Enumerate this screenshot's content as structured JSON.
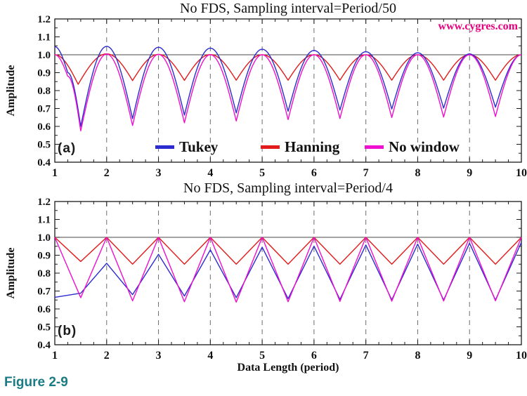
{
  "page": {
    "watermark": "www.cygres.com",
    "watermark_color": "#e6007e",
    "figure_caption": "Figure 2-9",
    "caption_color": "#1b7b85",
    "xlabel": "Data Length (period)"
  },
  "style_colors": {
    "gridline": "#6e6e6e",
    "reference_line": "#4a4a4a",
    "axis": "#1a1a1a"
  },
  "chart_data": [
    {
      "id": "a",
      "type": "line",
      "panel_label": "(a)",
      "title": "No FDS, Sampling interval=Period/50",
      "ylabel": "Amplitude",
      "xlim": [
        1,
        10
      ],
      "ylim": [
        0.4,
        1.2
      ],
      "x_major_ticks": [
        1,
        2,
        3,
        4,
        5,
        6,
        7,
        8,
        9,
        10
      ],
      "x_minor_step": 0.25,
      "y_major_ticks": [
        0.4,
        0.5,
        0.6,
        0.7,
        0.8,
        0.9,
        1.0,
        1.1,
        1.2
      ],
      "y_minor_step": 0.05,
      "grid_x_dashed": [
        2,
        3,
        4,
        5,
        6,
        7,
        8,
        9
      ],
      "reference_line_y": 1.0,
      "interp": "scallop",
      "legend_visible": true,
      "series": [
        {
          "name": "Tukey",
          "color": "#2b2bd0",
          "points": [
            [
              1,
              1.045
            ],
            [
              1.25,
              0.9
            ],
            [
              1.5,
              0.6
            ],
            [
              2,
              1.047
            ],
            [
              2.5,
              0.643
            ],
            [
              3,
              1.042
            ],
            [
              3.5,
              0.663
            ],
            [
              4,
              1.037
            ],
            [
              4.5,
              0.675
            ],
            [
              5,
              1.031
            ],
            [
              5.5,
              0.684
            ],
            [
              6,
              1.024
            ],
            [
              6.5,
              0.691
            ],
            [
              7,
              1.017
            ],
            [
              7.5,
              0.697
            ],
            [
              8,
              1.011
            ],
            [
              8.5,
              0.702
            ],
            [
              9,
              1.005
            ],
            [
              9.5,
              0.707
            ],
            [
              10,
              1.0
            ]
          ]
        },
        {
          "name": "Hanning",
          "color": "#e21b1b",
          "points": [
            [
              1,
              1.0
            ],
            [
              1.45,
              0.835
            ],
            [
              2,
              1.005
            ],
            [
              2.5,
              0.856
            ],
            [
              3,
              1.002
            ],
            [
              3.5,
              0.857
            ],
            [
              4,
              1.001
            ],
            [
              4.5,
              0.858
            ],
            [
              5,
              1.0
            ],
            [
              5.5,
              0.858
            ],
            [
              6,
              1.0
            ],
            [
              6.5,
              0.858
            ],
            [
              7,
              1.0
            ],
            [
              7.5,
              0.858
            ],
            [
              8,
              1.0
            ],
            [
              8.5,
              0.858
            ],
            [
              9,
              1.0
            ],
            [
              9.5,
              0.858
            ],
            [
              10,
              1.0
            ]
          ]
        },
        {
          "name": "No window",
          "color": "#ef0fce",
          "points": [
            [
              1,
              1.0
            ],
            [
              1.25,
              0.88
            ],
            [
              1.5,
              0.575
            ],
            [
              2,
              1.004
            ],
            [
              2.5,
              0.605
            ],
            [
              3,
              1.002
            ],
            [
              3.5,
              0.62
            ],
            [
              4,
              1.0
            ],
            [
              4.5,
              0.63
            ],
            [
              5,
              1.0
            ],
            [
              5.5,
              0.638
            ],
            [
              6,
              1.0
            ],
            [
              6.5,
              0.644
            ],
            [
              7,
              1.0
            ],
            [
              7.5,
              0.649
            ],
            [
              8,
              1.0
            ],
            [
              8.5,
              0.652
            ],
            [
              9,
              1.0
            ],
            [
              9.5,
              0.655
            ],
            [
              10,
              1.0
            ]
          ]
        }
      ]
    },
    {
      "id": "b",
      "type": "line",
      "panel_label": "(b)",
      "title": "No FDS, Sampling interval=Period/4",
      "ylabel": "Amplitude",
      "xlim": [
        1,
        10
      ],
      "ylim": [
        0.4,
        1.2
      ],
      "x_major_ticks": [
        1,
        2,
        3,
        4,
        5,
        6,
        7,
        8,
        9,
        10
      ],
      "x_minor_step": 0.25,
      "y_major_ticks": [
        0.4,
        0.5,
        0.6,
        0.7,
        0.8,
        0.9,
        1.0,
        1.1,
        1.2
      ],
      "y_minor_step": 0.05,
      "grid_x_dashed": [
        2,
        3,
        4,
        5,
        6,
        7,
        8,
        9
      ],
      "reference_line_y": 1.0,
      "interp": "linear",
      "legend_visible": false,
      "series": [
        {
          "name": "Tukey",
          "color": "#2b2bd0",
          "points": [
            [
              1,
              0.665
            ],
            [
              1.5,
              0.688
            ],
            [
              2,
              0.855
            ],
            [
              2.5,
              0.68
            ],
            [
              3,
              0.905
            ],
            [
              3.5,
              0.672
            ],
            [
              4,
              0.93
            ],
            [
              4.5,
              0.663
            ],
            [
              5,
              0.945
            ],
            [
              5.5,
              0.657
            ],
            [
              6,
              0.951
            ],
            [
              6.5,
              0.653
            ],
            [
              7,
              0.957
            ],
            [
              7.5,
              0.651
            ],
            [
              8,
              0.962
            ],
            [
              8.5,
              0.65
            ],
            [
              9,
              0.967
            ],
            [
              9.5,
              0.65
            ],
            [
              10,
              0.972
            ]
          ]
        },
        {
          "name": "Hanning",
          "color": "#e21b1b",
          "points": [
            [
              1,
              1.0
            ],
            [
              1.5,
              0.865
            ],
            [
              2,
              1.0
            ],
            [
              2.5,
              0.85
            ],
            [
              3,
              1.0
            ],
            [
              3.5,
              0.85
            ],
            [
              4,
              1.0
            ],
            [
              4.5,
              0.85
            ],
            [
              5,
              1.0
            ],
            [
              5.5,
              0.85
            ],
            [
              6,
              1.0
            ],
            [
              6.5,
              0.85
            ],
            [
              7,
              1.0
            ],
            [
              7.5,
              0.85
            ],
            [
              8,
              1.0
            ],
            [
              8.5,
              0.85
            ],
            [
              9,
              1.0
            ],
            [
              9.5,
              0.85
            ],
            [
              10,
              1.0
            ]
          ]
        },
        {
          "name": "No window",
          "color": "#ef0fce",
          "points": [
            [
              1,
              1.0
            ],
            [
              1.5,
              0.663
            ],
            [
              2,
              1.0
            ],
            [
              2.5,
              0.645
            ],
            [
              3,
              1.0
            ],
            [
              3.5,
              0.64
            ],
            [
              4,
              1.0
            ],
            [
              4.5,
              0.638
            ],
            [
              5,
              1.0
            ],
            [
              5.5,
              0.64
            ],
            [
              6,
              1.0
            ],
            [
              6.5,
              0.642
            ],
            [
              7,
              1.0
            ],
            [
              7.5,
              0.643
            ],
            [
              8,
              1.0
            ],
            [
              8.5,
              0.644
            ],
            [
              9,
              1.0
            ],
            [
              9.5,
              0.645
            ],
            [
              10,
              1.0
            ]
          ]
        }
      ]
    }
  ]
}
